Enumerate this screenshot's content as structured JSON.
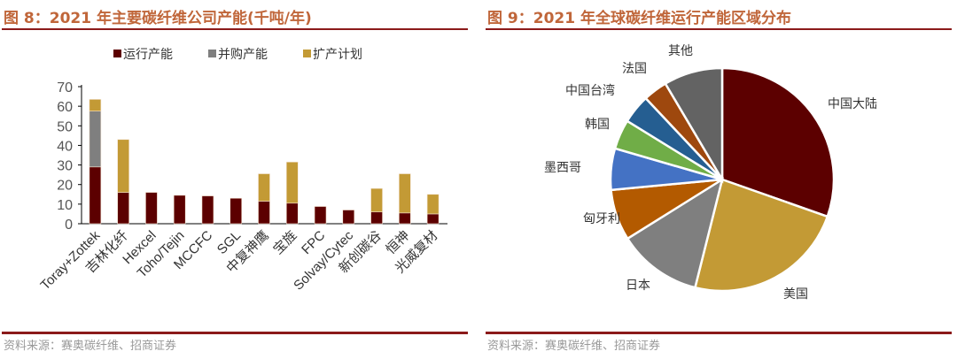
{
  "left": {
    "title": "图 8：2021 年主要碳纤维公司产能(千吨/年)",
    "source": "资料来源：赛奥碳纤维、招商证券"
  },
  "right": {
    "title": "图 9：2021 年全球碳纤维运行产能区域分布",
    "source": "资料来源：赛奥碳纤维、招商证券"
  },
  "chart_data": [
    {
      "type": "bar",
      "stacked": true,
      "title": "图 8：2021 年主要碳纤维公司产能(千吨/年)",
      "categories": [
        "Toray+Zottek",
        "吉林化纤",
        "Hexcel",
        "Toho/Tejin",
        "MCCFC",
        "SGL",
        "中复神鹰",
        "宝旌",
        "FPC",
        "Solvay/Cytec",
        "新创碳谷",
        "恒神",
        "光威复材"
      ],
      "series": [
        {
          "name": "运行产能",
          "color": "#5c0000",
          "values": [
            29,
            16,
            16,
            14.5,
            14.2,
            13,
            11.5,
            10.5,
            8.8,
            7,
            6,
            5.5,
            5
          ]
        },
        {
          "name": "并购产能",
          "color": "#7f7f7f",
          "values": [
            28.5,
            0,
            0,
            0,
            0,
            0,
            0,
            0,
            0,
            0,
            0,
            0,
            0
          ]
        },
        {
          "name": "扩产计划",
          "color": "#c39a35",
          "values": [
            6,
            27,
            0,
            0,
            0,
            0,
            14,
            21,
            0,
            0,
            12,
            20,
            10
          ]
        }
      ],
      "ylim": [
        0,
        70
      ],
      "yticks": [
        0,
        10,
        20,
        30,
        40,
        50,
        60,
        70
      ],
      "grid": false,
      "legend": "top"
    },
    {
      "type": "pie",
      "title": "图 9：2021 年全球碳纤维运行产能区域分布",
      "slices": [
        {
          "label": "中国大陆",
          "value": 30.4,
          "color": "#5c0000"
        },
        {
          "label": "美国",
          "value": 23.5,
          "color": "#c39a35"
        },
        {
          "label": "日本",
          "value": 12.2,
          "color": "#7f7f7f"
        },
        {
          "label": "匈牙利",
          "value": 7.4,
          "color": "#b35a00"
        },
        {
          "label": "墨西哥",
          "value": 6.0,
          "color": "#4472c4"
        },
        {
          "label": "韩国",
          "value": 4.3,
          "color": "#70ad47"
        },
        {
          "label": "中国台湾",
          "value": 4.2,
          "color": "#255e91"
        },
        {
          "label": "法国",
          "value": 3.5,
          "color": "#9e480e"
        },
        {
          "label": "其他",
          "value": 8.5,
          "color": "#636363"
        }
      ]
    }
  ]
}
